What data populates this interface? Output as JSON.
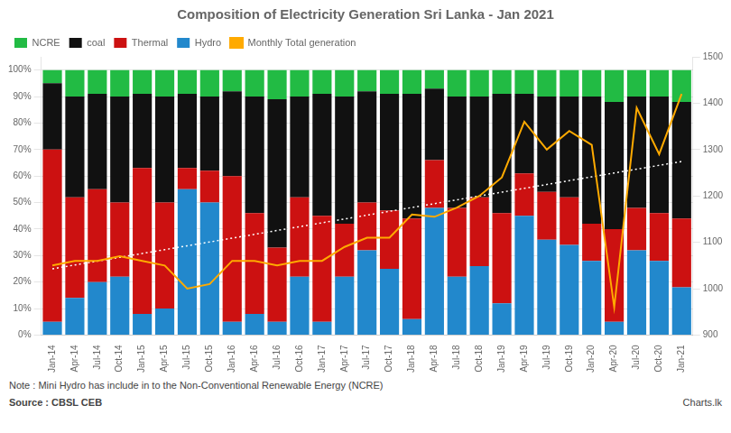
{
  "chart_data": {
    "type": "bar",
    "title": "Composition of Electricity Generation Sri Lanka - Jan 2021",
    "annotations": [
      "Note : Mini Hydro has include in to the Non-Conventional Renewable Energy (NCRE)",
      "Source : CBSL  CEB",
      "Charts.lk"
    ],
    "categories": [
      "Jan-14",
      "Apr-14",
      "Jul-14",
      "Oct-14",
      "Jan-15",
      "Apr-15",
      "Jul-15",
      "Oct-15",
      "Jan-16",
      "Apr-16",
      "Jul-16",
      "Oct-16",
      "Jan-17",
      "Apr-17",
      "Jul-17",
      "Oct-17",
      "Jan-18",
      "Apr-18",
      "Jul-18",
      "Oct-18",
      "Jan-19",
      "Apr-19",
      "Jul-19",
      "Oct-19",
      "Jan-20",
      "Apr-20",
      "Jul-20",
      "Oct-20",
      "Jan-21"
    ],
    "stacked": true,
    "grid": true,
    "legend": "top",
    "ylim": [
      0,
      1.05
    ],
    "yticks": [
      {
        "value": 0,
        "label": "0%"
      },
      {
        "value": 0.1,
        "label": "10%"
      },
      {
        "value": 0.2,
        "label": "20%"
      },
      {
        "value": 0.3,
        "label": "30%"
      },
      {
        "value": 0.4,
        "label": "40%"
      },
      {
        "value": 0.5,
        "label": "50%"
      },
      {
        "value": 0.6,
        "label": "60%"
      },
      {
        "value": 0.7,
        "label": "70%"
      },
      {
        "value": 0.8,
        "label": "80%"
      },
      {
        "value": 0.9,
        "label": "90%"
      },
      {
        "value": 1.0,
        "label": "100%"
      }
    ],
    "y2lim": [
      900,
      1500
    ],
    "y2ticks": [
      900,
      1000,
      1100,
      1200,
      1300,
      1400,
      1500
    ],
    "series": [
      {
        "name": "Hydro",
        "type": "bar",
        "color": "#2288cc",
        "values": [
          0.05,
          0.14,
          0.2,
          0.22,
          0.08,
          0.1,
          0.55,
          0.5,
          0.05,
          0.08,
          0.05,
          0.22,
          0.05,
          0.22,
          0.32,
          0.25,
          0.06,
          0.48,
          0.22,
          0.26,
          0.12,
          0.45,
          0.36,
          0.34,
          0.28,
          0.05,
          0.32,
          0.28,
          0.18
        ]
      },
      {
        "name": "Thermal",
        "type": "bar",
        "color": "#cc1111",
        "values": [
          0.65,
          0.38,
          0.35,
          0.28,
          0.55,
          0.4,
          0.08,
          0.12,
          0.55,
          0.38,
          0.28,
          0.3,
          0.4,
          0.2,
          0.18,
          0.22,
          0.38,
          0.18,
          0.26,
          0.26,
          0.34,
          0.16,
          0.18,
          0.18,
          0.14,
          0.35,
          0.16,
          0.18,
          0.26
        ]
      },
      {
        "name": "coal",
        "type": "bar",
        "color": "#111111",
        "values": [
          0.25,
          0.38,
          0.36,
          0.4,
          0.28,
          0.4,
          0.28,
          0.28,
          0.32,
          0.44,
          0.56,
          0.38,
          0.46,
          0.48,
          0.42,
          0.44,
          0.47,
          0.27,
          0.42,
          0.38,
          0.45,
          0.3,
          0.36,
          0.38,
          0.48,
          0.48,
          0.42,
          0.44,
          0.44
        ]
      },
      {
        "name": "NCRE",
        "type": "bar",
        "color": "#22bb44",
        "values": [
          0.05,
          0.1,
          0.09,
          0.1,
          0.09,
          0.1,
          0.09,
          0.1,
          0.08,
          0.1,
          0.11,
          0.1,
          0.09,
          0.1,
          0.08,
          0.09,
          0.09,
          0.07,
          0.1,
          0.1,
          0.09,
          0.09,
          0.1,
          0.1,
          0.1,
          0.12,
          0.1,
          0.1,
          0.12
        ]
      },
      {
        "name": "Monthly Total generation",
        "type": "line",
        "axis": "y2",
        "color": "#ffaa00",
        "marker": "none",
        "line_style": "solid",
        "values": [
          1050,
          1060,
          1060,
          1070,
          1060,
          1050,
          1000,
          1010,
          1060,
          1060,
          1050,
          1060,
          1060,
          1090,
          1110,
          1110,
          1160,
          1155,
          1175,
          1200,
          1240,
          1360,
          1300,
          1340,
          1310,
          960,
          1390,
          1290,
          1420
        ]
      },
      {
        "type": "line",
        "color": "#ffffff",
        "marker": "none",
        "line_style": "dotted",
        "values": [
          0.25,
          0.264464,
          0.278929,
          0.293393,
          0.307857,
          0.322321,
          0.336786,
          0.35125,
          0.365714,
          0.380179,
          0.394643,
          0.409107,
          0.423571,
          0.438036,
          0.4525,
          0.466964,
          0.481429,
          0.495893,
          0.510357,
          0.524821,
          0.539286,
          0.55375,
          0.568214,
          0.582679,
          0.597143,
          0.611607,
          0.626071,
          0.640536,
          0.655
        ]
      }
    ]
  }
}
